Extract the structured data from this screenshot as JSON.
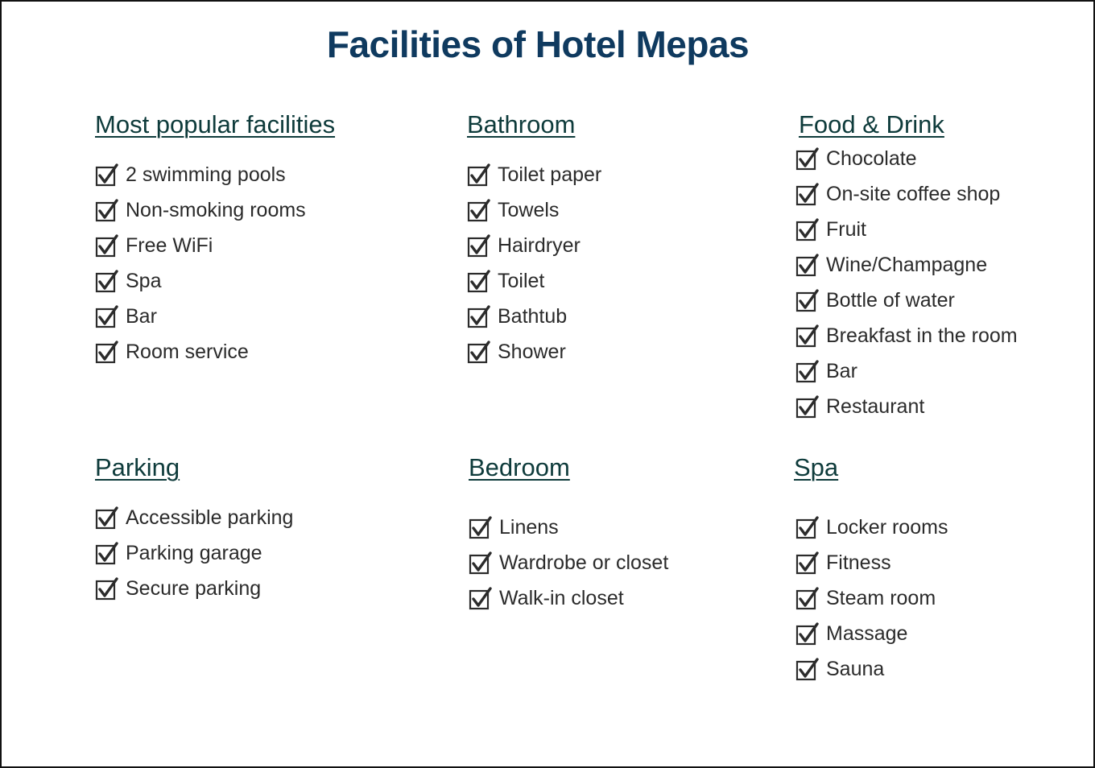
{
  "title": "Facilities of Hotel Mepas",
  "sections": [
    {
      "heading": "Most popular facilities",
      "items": [
        "2 swimming pools",
        "Non-smoking rooms",
        "Free WiFi",
        "Spa",
        "Bar",
        "Room service"
      ]
    },
    {
      "heading": "Bathroom",
      "items": [
        "Toilet paper",
        "Towels",
        "Hairdryer",
        "Toilet",
        "Bathtub",
        "Shower"
      ]
    },
    {
      "heading": "Food & Drink",
      "items": [
        "Chocolate",
        "On-site coffee shop",
        "Fruit",
        "Wine/Champagne",
        "Bottle of water",
        "Breakfast in the room",
        "Bar",
        "Restaurant"
      ]
    },
    {
      "heading": "Parking",
      "items": [
        "Accessible parking",
        "Parking garage",
        "Secure parking"
      ]
    },
    {
      "heading": "Bedroom",
      "items": [
        "Linens",
        "Wardrobe or closet",
        "Walk-in closet"
      ]
    },
    {
      "heading": "Spa",
      "items": [
        "Locker rooms",
        "Fitness",
        "Steam room",
        "Massage",
        "Sauna"
      ]
    }
  ],
  "icons": {
    "item_icon": "checked-box-icon"
  },
  "colors": {
    "title": "#0f3a5f",
    "heading": "#0e3b3b",
    "text": "#2b2b2b"
  }
}
